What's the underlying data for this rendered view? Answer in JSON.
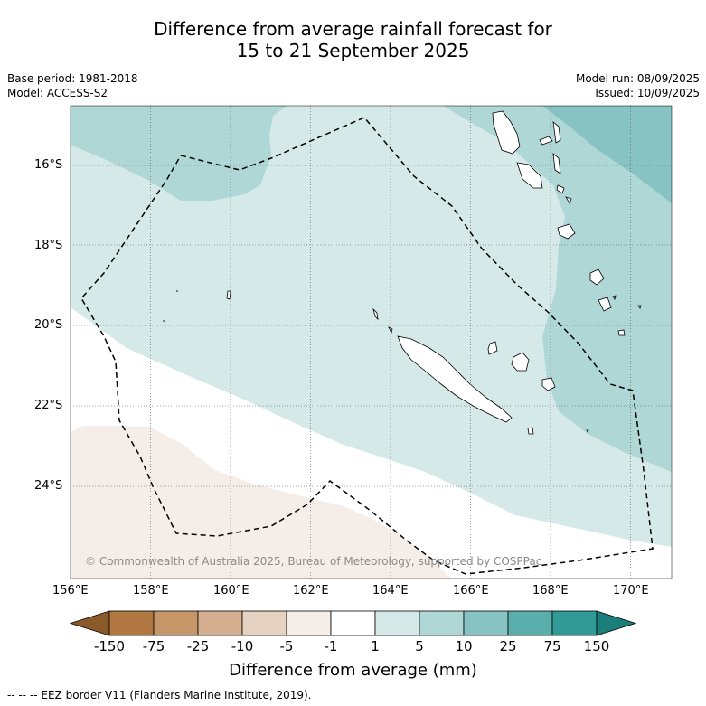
{
  "title": {
    "line1": "Difference from average rainfall forecast for",
    "line2": "15 to 21 September 2025"
  },
  "meta": {
    "base_period": "Base period: 1981-2018",
    "model": "Model: ACCESS-S2",
    "model_run": "Model run: 08/09/2025",
    "issued": "Issued: 10/09/2025"
  },
  "map": {
    "lat_labels": [
      "16°S",
      "18°S",
      "20°S",
      "22°S",
      "24°S"
    ],
    "lon_labels": [
      "156°E",
      "158°E",
      "160°E",
      "162°E",
      "164°E",
      "166°E",
      "168°E",
      "170°E"
    ],
    "copyright": "© Commonwealth of Australia 2025, Bureau of Meteorology, supported by COSPPac"
  },
  "colorbar": {
    "labels": [
      "-150",
      "-75",
      "-25",
      "-10",
      "-5",
      "-1",
      "1",
      "5",
      "10",
      "25",
      "75",
      "150"
    ],
    "colors": [
      "#8b5a2b",
      "#b07840",
      "#c49668",
      "#d4b090",
      "#e6d2c0",
      "#f5eee8",
      "#ffffff",
      "#d4e9e8",
      "#afd7d6",
      "#86c3c2",
      "#5aaeac",
      "#319a96",
      "#1c7e7a"
    ],
    "title": "Difference from average (mm)"
  },
  "footer": "--  --  -- EEZ border V11 (Flanders Marine Institute, 2019)."
}
